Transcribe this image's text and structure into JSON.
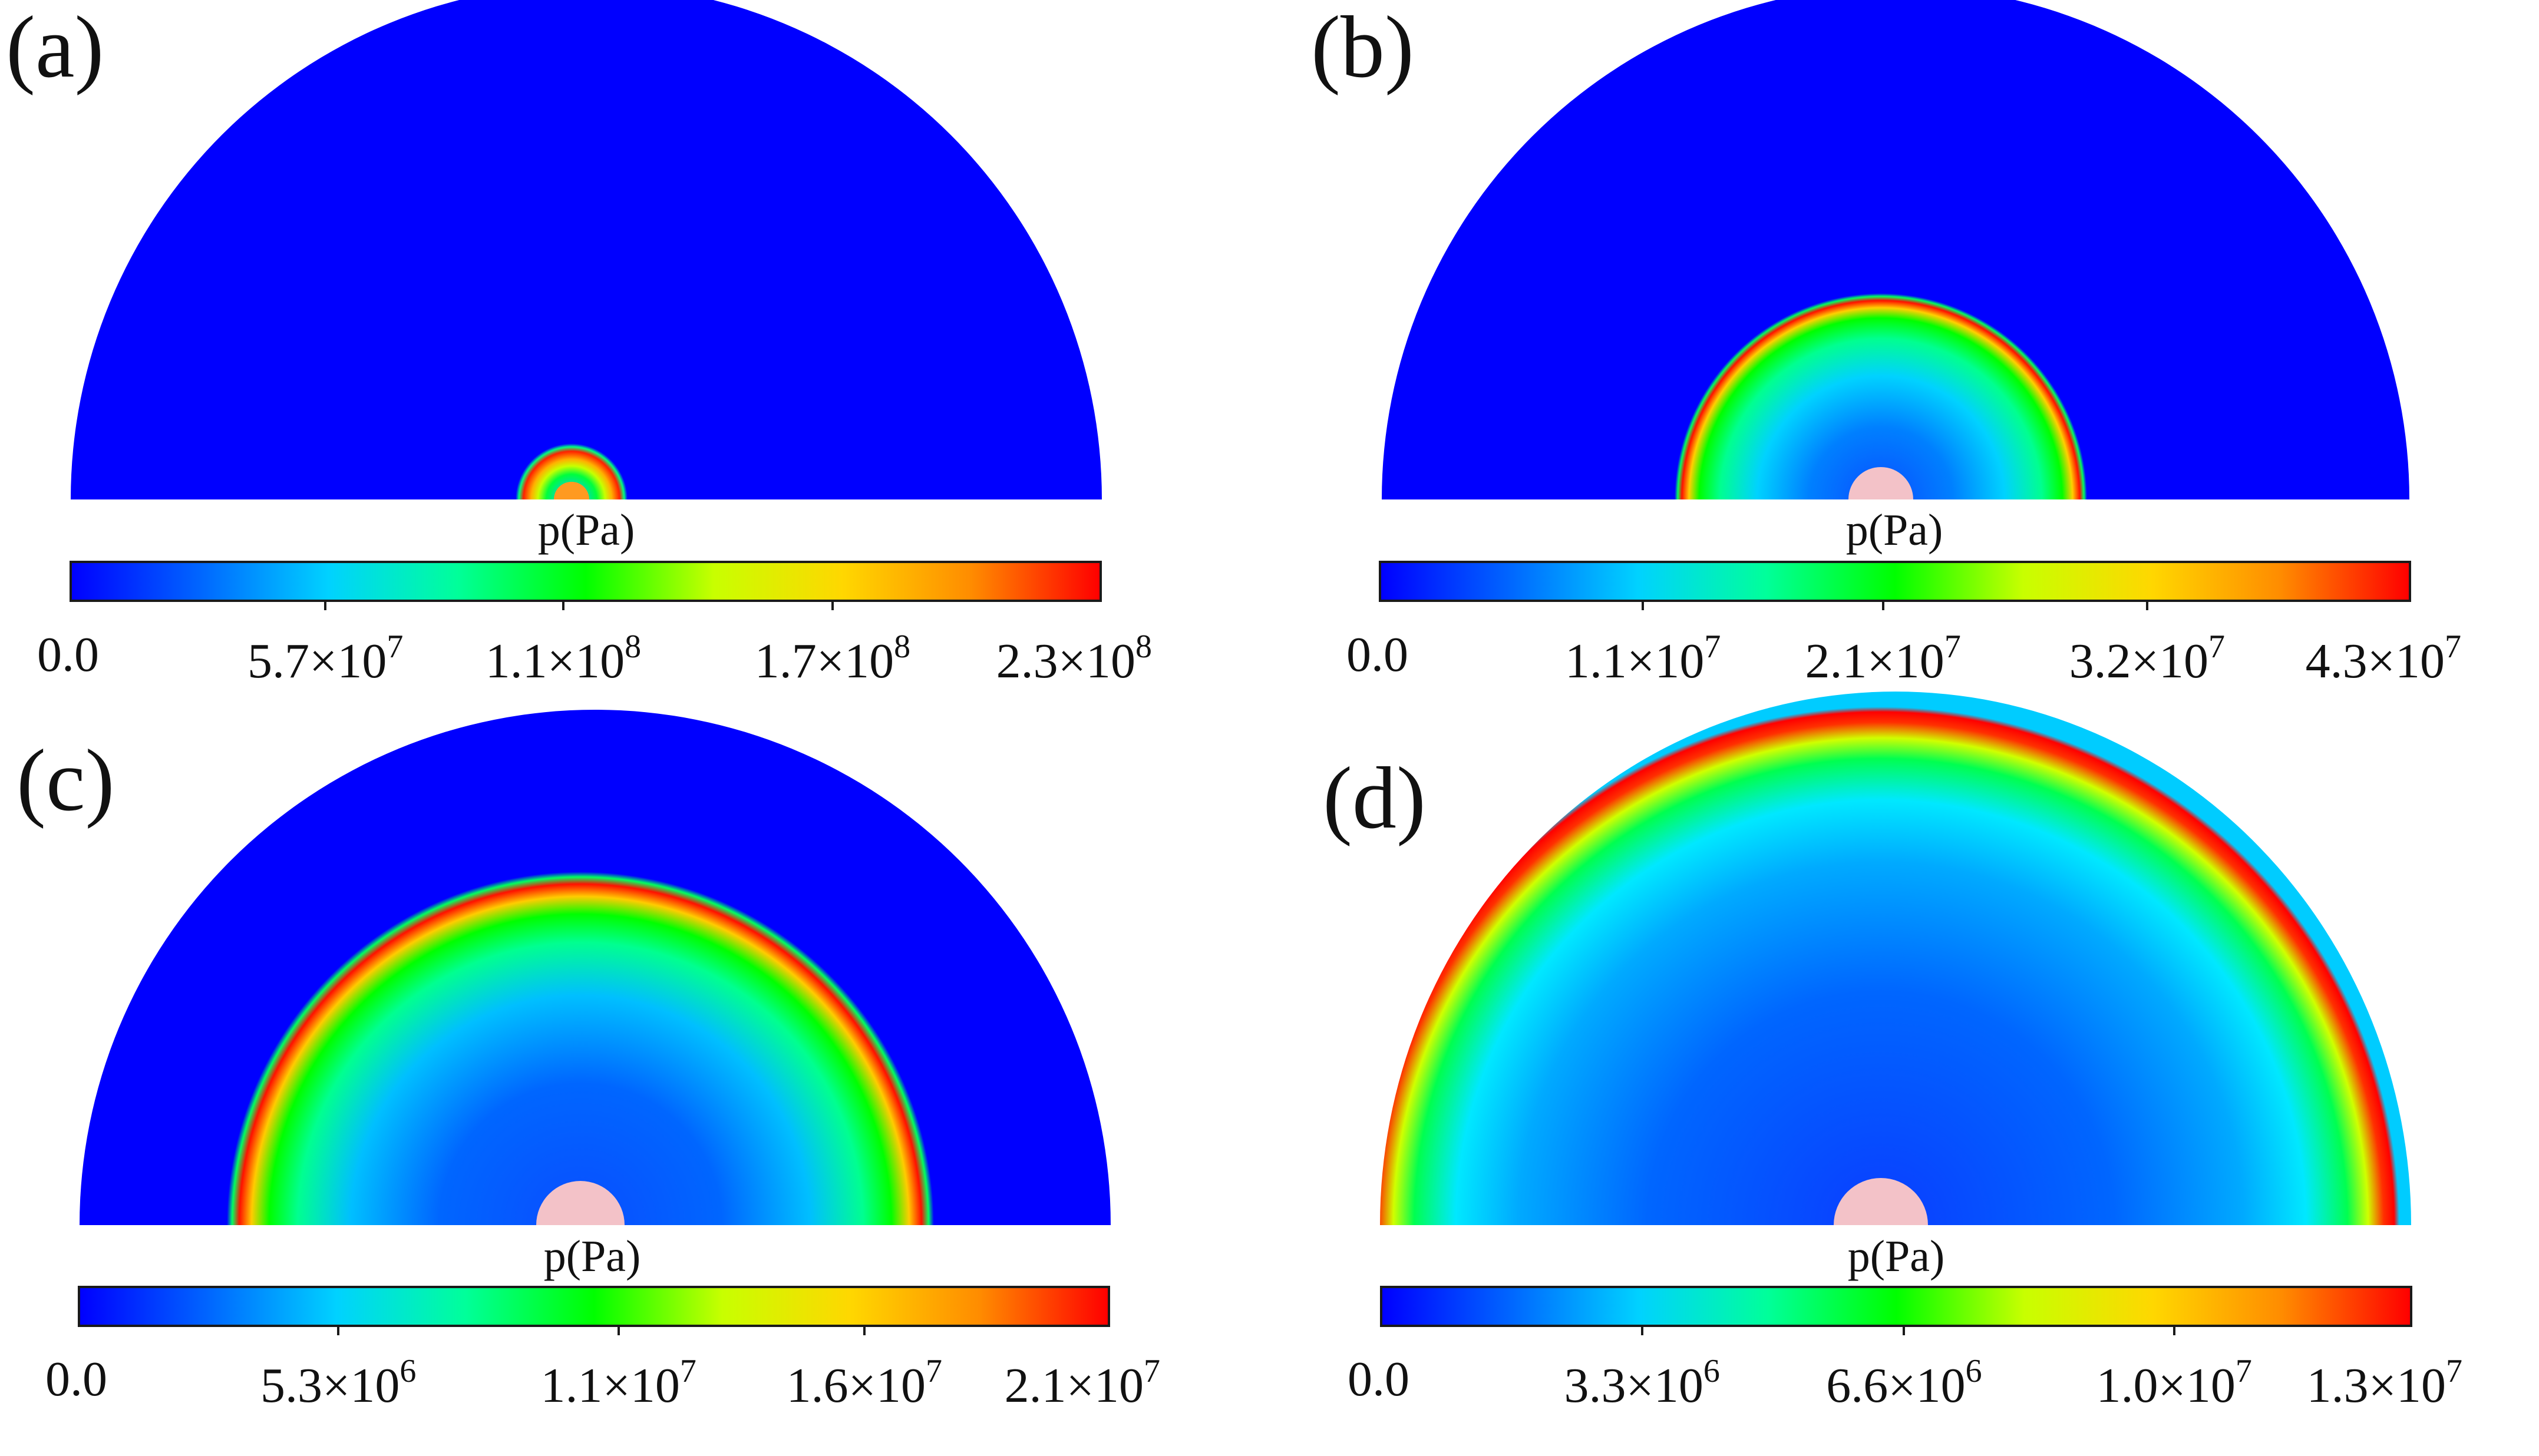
{
  "colormap": [
    "#0000ff",
    "#0066ff",
    "#00d2ff",
    "#00ff9a",
    "#00ff00",
    "#c8ff00",
    "#ffd700",
    "#ff8c00",
    "#ff0000"
  ],
  "background_color": "#0000ff",
  "source_color": "#f3c2c8",
  "panels": [
    {
      "id": "a",
      "label": "(a)",
      "colorbar": {
        "title": "p(Pa)",
        "ticks": [
          {
            "value": 0,
            "mantissa": "0.0",
            "exponent": ""
          },
          {
            "value": 57000000,
            "mantissa": "5.7×10",
            "exponent": "7"
          },
          {
            "value": 110000000,
            "mantissa": "1.1×10",
            "exponent": "8"
          },
          {
            "value": 170000000,
            "mantissa": "1.7×10",
            "exponent": "8"
          },
          {
            "value": 230000000,
            "mantissa": "2.3×10",
            "exponent": "8"
          }
        ]
      }
    },
    {
      "id": "b",
      "label": "(b)",
      "colorbar": {
        "title": "p(Pa)",
        "ticks": [
          {
            "value": 0,
            "mantissa": "0.0",
            "exponent": ""
          },
          {
            "value": 11000000,
            "mantissa": "1.1×10",
            "exponent": "7"
          },
          {
            "value": 21000000,
            "mantissa": "2.1×10",
            "exponent": "7"
          },
          {
            "value": 32000000,
            "mantissa": "3.2×10",
            "exponent": "7"
          },
          {
            "value": 43000000,
            "mantissa": "4.3×10",
            "exponent": "7"
          }
        ]
      }
    },
    {
      "id": "c",
      "label": "(c)",
      "colorbar": {
        "title": "p(Pa)",
        "ticks": [
          {
            "value": 0,
            "mantissa": "0.0",
            "exponent": ""
          },
          {
            "value": 5300000,
            "mantissa": "5.3×10",
            "exponent": "6"
          },
          {
            "value": 11000000,
            "mantissa": "1.1×10",
            "exponent": "7"
          },
          {
            "value": 16000000,
            "mantissa": "1.6×10",
            "exponent": "7"
          },
          {
            "value": 21000000,
            "mantissa": "2.1×10",
            "exponent": "7"
          }
        ]
      }
    },
    {
      "id": "d",
      "label": "(d)",
      "colorbar": {
        "title": "p(Pa)",
        "ticks": [
          {
            "value": 0,
            "mantissa": "0.0",
            "exponent": ""
          },
          {
            "value": 3300000,
            "mantissa": "3.3×10",
            "exponent": "6"
          },
          {
            "value": 6600000,
            "mantissa": "6.6×10",
            "exponent": "6"
          },
          {
            "value": 10000000,
            "mantissa": "1.0×10",
            "exponent": "7"
          },
          {
            "value": 13000000,
            "mantissa": "1.3×10",
            "exponent": "7"
          }
        ]
      }
    }
  ]
}
